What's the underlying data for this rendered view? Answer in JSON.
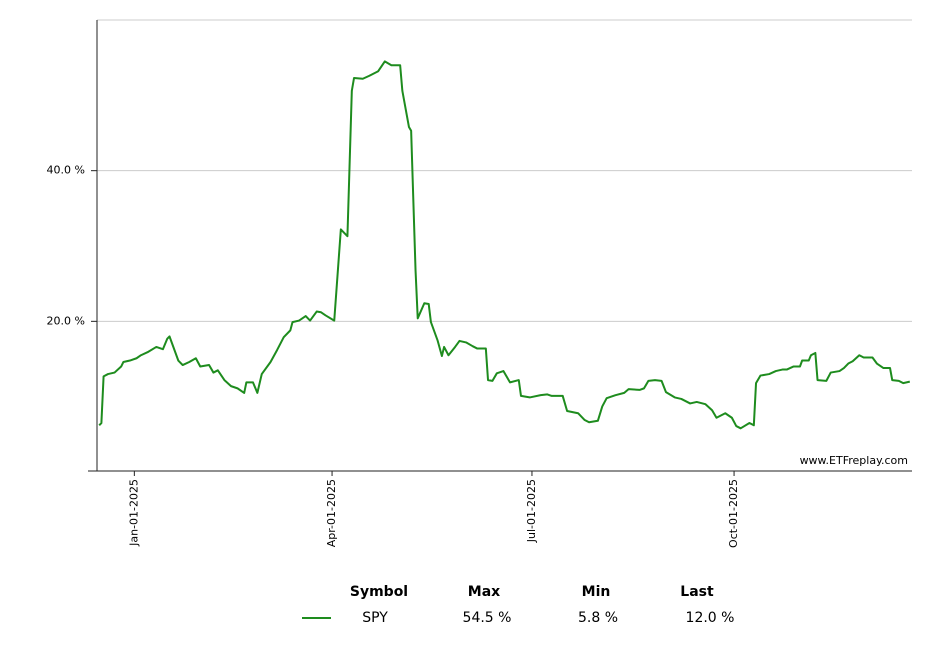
{
  "chart_data": {
    "type": "line",
    "watermark": "www.ETFreplay.com",
    "xlim": [
      "2024-12-15",
      "2025-12-21"
    ],
    "xticks": [
      {
        "value": "2025-01-01",
        "label": "Jan-01-2025"
      },
      {
        "value": "2025-04-01",
        "label": "Apr-01-2025"
      },
      {
        "value": "2025-07-01",
        "label": "Jul-01-2025"
      },
      {
        "value": "2025-10-01",
        "label": "Oct-01-2025"
      }
    ],
    "ylim": [
      0,
      60
    ],
    "yticks": [
      {
        "value": 20,
        "label": "20.0 %"
      },
      {
        "value": 40,
        "label": "40.0 %"
      }
    ],
    "grid": true,
    "x": [
      "2024-12-16",
      "2024-12-17",
      "2024-12-18",
      "2024-12-20",
      "2024-12-23",
      "2024-12-26",
      "2024-12-27",
      "2024-12-30",
      "2025-01-02",
      "2025-01-04",
      "2025-01-07",
      "2025-01-11",
      "2025-01-14",
      "2025-01-16",
      "2025-01-17",
      "2025-01-21",
      "2025-01-23",
      "2025-01-26",
      "2025-01-29",
      "2025-01-31",
      "2025-02-04",
      "2025-02-06",
      "2025-02-08",
      "2025-02-11",
      "2025-02-14",
      "2025-02-17",
      "2025-02-20",
      "2025-02-21",
      "2025-02-24",
      "2025-02-26",
      "2025-02-28",
      "2025-03-04",
      "2025-03-07",
      "2025-03-10",
      "2025-03-13",
      "2025-03-14",
      "2025-03-17",
      "2025-03-20",
      "2025-03-22",
      "2025-03-25",
      "2025-03-27",
      "2025-03-29",
      "2025-04-02",
      "2025-04-05",
      "2025-04-08",
      "2025-04-10",
      "2025-04-11",
      "2025-04-15",
      "2025-04-18",
      "2025-04-22",
      "2025-04-25",
      "2025-04-28",
      "2025-05-02",
      "2025-05-03",
      "2025-05-06",
      "2025-05-07",
      "2025-05-09",
      "2025-05-10",
      "2025-05-13",
      "2025-05-15",
      "2025-05-16",
      "2025-05-19",
      "2025-05-21",
      "2025-05-22",
      "2025-05-24",
      "2025-05-27",
      "2025-05-29",
      "2025-06-01",
      "2025-06-04",
      "2025-06-06",
      "2025-06-10",
      "2025-06-11",
      "2025-06-13",
      "2025-06-15",
      "2025-06-18",
      "2025-06-21",
      "2025-06-25",
      "2025-06-26",
      "2025-06-30",
      "2025-07-05",
      "2025-07-08",
      "2025-07-10",
      "2025-07-15",
      "2025-07-17",
      "2025-07-22",
      "2025-07-25",
      "2025-07-27",
      "2025-07-31",
      "2025-08-02",
      "2025-08-04",
      "2025-08-08",
      "2025-08-12",
      "2025-08-14",
      "2025-08-19",
      "2025-08-21",
      "2025-08-23",
      "2025-08-26",
      "2025-08-29",
      "2025-08-31",
      "2025-09-04",
      "2025-09-07",
      "2025-09-11",
      "2025-09-14",
      "2025-09-18",
      "2025-09-21",
      "2025-09-23",
      "2025-09-27",
      "2025-09-30",
      "2025-10-02",
      "2025-10-04",
      "2025-10-08",
      "2025-10-10",
      "2025-10-11",
      "2025-10-13",
      "2025-10-17",
      "2025-10-20",
      "2025-10-23",
      "2025-10-25",
      "2025-10-28",
      "2025-10-31",
      "2025-11-01",
      "2025-11-04",
      "2025-11-05",
      "2025-11-07",
      "2025-11-08",
      "2025-11-12",
      "2025-11-14",
      "2025-11-18",
      "2025-11-20",
      "2025-11-22",
      "2025-11-24",
      "2025-11-27",
      "2025-11-29",
      "2025-12-03",
      "2025-12-05",
      "2025-12-08",
      "2025-12-11",
      "2025-12-12",
      "2025-12-15",
      "2025-12-17",
      "2025-12-20"
    ],
    "series": [
      {
        "name": "SPY",
        "color": "#1e8c1e",
        "values": [
          6.2,
          6.5,
          12.7,
          13.0,
          13.2,
          14.0,
          14.6,
          14.8,
          15.1,
          15.5,
          15.9,
          16.6,
          16.3,
          17.7,
          18.0,
          14.8,
          14.2,
          14.6,
          15.1,
          14.0,
          14.2,
          13.2,
          13.5,
          12.2,
          11.4,
          11.1,
          10.5,
          11.9,
          11.9,
          10.5,
          13.0,
          14.6,
          16.2,
          17.9,
          18.8,
          19.9,
          20.1,
          20.7,
          20.1,
          21.3,
          21.2,
          20.8,
          20.1,
          32.2,
          31.3,
          50.6,
          52.3,
          52.2,
          52.6,
          53.2,
          54.5,
          54.0,
          54.0,
          50.6,
          45.8,
          45.3,
          26.8,
          20.4,
          22.4,
          22.3,
          19.9,
          17.5,
          15.4,
          16.6,
          15.5,
          16.6,
          17.4,
          17.2,
          16.7,
          16.4,
          16.4,
          12.2,
          12.1,
          13.1,
          13.4,
          11.9,
          12.2,
          10.1,
          9.9,
          10.2,
          10.3,
          10.1,
          10.1,
          8.1,
          7.8,
          6.9,
          6.6,
          6.8,
          8.7,
          9.8,
          10.2,
          10.5,
          11.0,
          10.9,
          11.1,
          12.1,
          12.2,
          12.1,
          10.6,
          9.9,
          9.7,
          9.1,
          9.3,
          9.0,
          8.2,
          7.2,
          7.8,
          7.2,
          6.1,
          5.8,
          6.5,
          6.2,
          11.8,
          12.8,
          13.0,
          13.4,
          13.6,
          13.6,
          14.0,
          14.0,
          14.8,
          14.8,
          15.5,
          15.8,
          12.2,
          12.1,
          13.2,
          13.4,
          13.8,
          14.4,
          14.7,
          15.5,
          15.2,
          15.2,
          14.4,
          13.8,
          13.8,
          12.2,
          12.1,
          11.8,
          12.0
        ],
        "summary": {
          "values": [
            54.5,
            5.8,
            12.0
          ],
          "value_labels": [
            "54.5 %",
            "5.8 %",
            "12.0 %"
          ]
        }
      }
    ],
    "summary_headers": [
      "Symbol",
      "Max",
      "Min",
      "Last"
    ]
  }
}
